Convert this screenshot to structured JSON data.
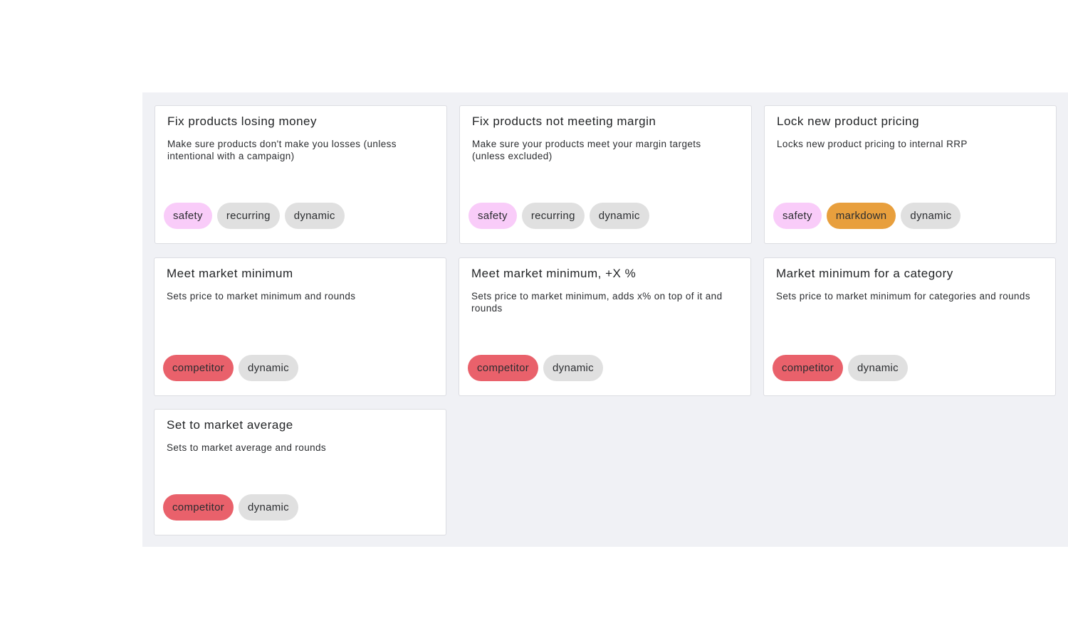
{
  "cards": [
    {
      "title": "Fix products losing money",
      "description": "Make sure products don't make you losses (unless intentional with a campaign)",
      "tags": [
        "safety",
        "recurring",
        "dynamic"
      ]
    },
    {
      "title": "Fix products not meeting margin",
      "description": "Make sure your products meet your margin targets (unless excluded)",
      "tags": [
        "safety",
        "recurring",
        "dynamic"
      ]
    },
    {
      "title": "Lock new product pricing",
      "description": "Locks new product pricing to internal RRP",
      "tags": [
        "safety",
        "markdown",
        "dynamic"
      ]
    },
    {
      "title": "Meet market minimum",
      "description": "Sets price to market minimum and rounds",
      "tags": [
        "competitor",
        "dynamic"
      ]
    },
    {
      "title": "Meet market minimum, +X %",
      "description": "Sets price to market minimum, adds x% on top of it and rounds",
      "tags": [
        "competitor",
        "dynamic"
      ]
    },
    {
      "title": "Market minimum for a category",
      "description": "Sets price to market minimum for categories and rounds",
      "tags": [
        "competitor",
        "dynamic"
      ]
    },
    {
      "title": "Set to market average",
      "description": "Sets to market average and rounds",
      "tags": [
        "competitor",
        "dynamic"
      ]
    }
  ],
  "tag_colors": {
    "safety": "#f9ccf9",
    "recurring": "#e0e0e0",
    "dynamic": "#e0e0e0",
    "markdown": "#e89f3d",
    "competitor": "#e9616b"
  },
  "panel_background": "#f0f1f5"
}
